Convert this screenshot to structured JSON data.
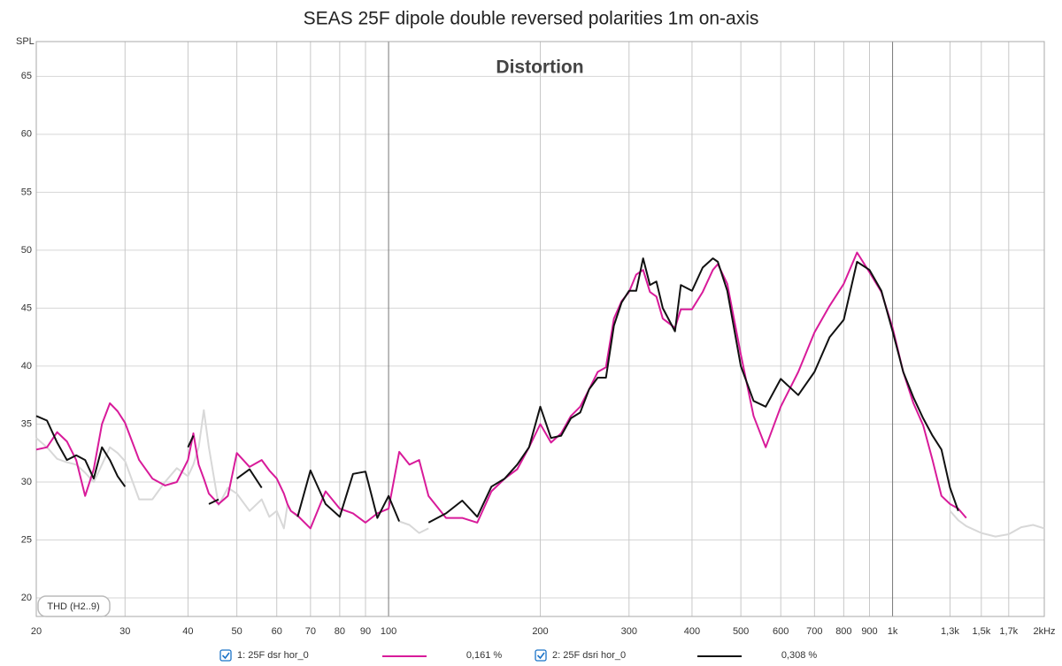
{
  "chart_data": {
    "type": "line",
    "title": "SEAS 25F dipole double reversed polarities 1m on-axis",
    "subtitle": "Distortion",
    "y_label": "SPL",
    "annotation": "THD (H2..9)",
    "log_x": true,
    "grid": true,
    "xlim": [
      20,
      2000
    ],
    "ylim": [
      18.4,
      68
    ],
    "yticks": [
      20,
      25,
      30,
      35,
      40,
      45,
      50,
      55,
      60,
      65
    ],
    "xticks": [
      20,
      30,
      40,
      50,
      60,
      70,
      80,
      90,
      100,
      200,
      300,
      400,
      500,
      600,
      700,
      800,
      900,
      {
        "value": 1000,
        "label": "1k"
      },
      {
        "value": 1300,
        "label": "1,3k"
      },
      {
        "value": 1500,
        "label": "1,5k"
      },
      {
        "value": 1700,
        "label": "1,7k"
      },
      {
        "value": 2000,
        "label": "2kHz"
      }
    ],
    "x": [
      20,
      21,
      22,
      23,
      24,
      25,
      26,
      27,
      28,
      29,
      30,
      32,
      34,
      36,
      38,
      40,
      41,
      42,
      43,
      44,
      46,
      48,
      50,
      53,
      56,
      58,
      60,
      62,
      63,
      64,
      66,
      70,
      75,
      80,
      85,
      90,
      95,
      100,
      105,
      110,
      115,
      120,
      130,
      140,
      150,
      160,
      170,
      180,
      190,
      200,
      210,
      220,
      230,
      240,
      250,
      260,
      270,
      280,
      290,
      300,
      310,
      320,
      330,
      340,
      350,
      370,
      380,
      400,
      420,
      440,
      450,
      470,
      500,
      530,
      560,
      600,
      650,
      700,
      750,
      800,
      850,
      900,
      950,
      1000,
      1050,
      1100,
      1150,
      1200,
      1250,
      1300,
      1350,
      1400,
      1500,
      1600,
      1700,
      1800,
      1900,
      2000
    ],
    "series": [
      {
        "color": "#d8d8d8",
        "values": [
          33.8,
          33.0,
          32.0,
          31.7,
          31.5,
          30.8,
          30.0,
          31.5,
          33.0,
          32.5,
          31.8,
          28.5,
          28.5,
          30.0,
          31.2,
          30.5,
          31.5,
          33.0,
          36.2,
          33.0,
          28.0,
          29.5,
          29.0,
          27.5,
          28.5,
          27.0,
          27.5,
          26.0,
          28.0,
          27.5,
          27.0,
          null,
          null,
          null,
          null,
          null,
          null,
          null,
          26.6,
          26.3,
          25.6,
          26.0,
          null,
          null,
          null,
          null,
          null,
          null,
          null,
          null,
          null,
          null,
          null,
          null,
          null,
          null,
          null,
          null,
          null,
          null,
          null,
          null,
          null,
          null,
          null,
          null,
          null,
          null,
          null,
          null,
          null,
          null,
          null,
          null,
          null,
          null,
          null,
          null,
          null,
          null,
          null,
          null,
          null,
          null,
          null,
          null,
          null,
          null,
          null,
          27.5,
          26.7,
          26.2,
          25.6,
          25.3,
          25.5,
          26.1,
          26.3,
          26.0
        ]
      },
      {
        "name": "1: 25F dsr hor_0",
        "legend_value": "0,161 %",
        "color": "#d81b9a",
        "values": [
          32.8,
          33.0,
          34.3,
          33.5,
          31.9,
          28.8,
          31.1,
          35.0,
          36.8,
          36.1,
          35.1,
          31.9,
          30.3,
          29.7,
          30.0,
          31.9,
          34.2,
          31.5,
          30.3,
          29.0,
          28.1,
          28.8,
          32.5,
          31.3,
          31.9,
          31.0,
          30.3,
          29.0,
          28.1,
          27.5,
          27.1,
          26.0,
          29.2,
          27.7,
          27.3,
          26.5,
          27.3,
          27.7,
          32.6,
          31.5,
          31.9,
          28.8,
          26.9,
          26.9,
          26.5,
          29.2,
          30.3,
          31.1,
          33.0,
          35.0,
          33.4,
          34.2,
          35.7,
          36.5,
          38.0,
          39.5,
          39.9,
          44.1,
          45.6,
          46.4,
          47.9,
          48.3,
          46.4,
          46.0,
          44.1,
          43.3,
          44.9,
          44.9,
          46.4,
          48.3,
          48.8,
          47.1,
          41.0,
          35.7,
          33.0,
          36.5,
          39.5,
          42.9,
          45.2,
          47.1,
          49.8,
          48.1,
          46.4,
          43.3,
          39.5,
          36.8,
          34.9,
          31.9,
          28.8,
          28.1,
          27.7,
          26.9,
          null,
          null,
          null,
          null,
          null,
          null
        ]
      },
      {
        "name": "2: 25F dsri hor_0",
        "legend_value": "0,308 %",
        "color": "#111111",
        "values": [
          35.7,
          35.3,
          33.4,
          31.9,
          32.3,
          31.9,
          30.3,
          33.0,
          31.9,
          30.5,
          29.6,
          null,
          null,
          null,
          null,
          33.0,
          34.0,
          null,
          null,
          28.1,
          28.5,
          null,
          30.3,
          31.1,
          29.5,
          null,
          null,
          null,
          null,
          null,
          27.0,
          31.0,
          28.1,
          27.0,
          30.7,
          30.9,
          26.9,
          28.8,
          26.6,
          null,
          null,
          26.5,
          27.3,
          28.4,
          27.0,
          29.6,
          30.3,
          31.5,
          33.0,
          36.5,
          33.8,
          34.0,
          35.5,
          36.0,
          38.0,
          39.0,
          39.0,
          43.5,
          45.5,
          46.5,
          46.5,
          49.3,
          47.0,
          47.3,
          45.0,
          43.0,
          47.0,
          46.5,
          48.5,
          49.3,
          49.0,
          46.5,
          40.0,
          37.0,
          36.5,
          38.9,
          37.5,
          39.5,
          42.5,
          44.0,
          49.0,
          48.3,
          46.5,
          43.0,
          39.5,
          37.3,
          35.5,
          34.0,
          32.8,
          29.5,
          27.5,
          null,
          null,
          null,
          null,
          null,
          null,
          null
        ]
      }
    ]
  }
}
